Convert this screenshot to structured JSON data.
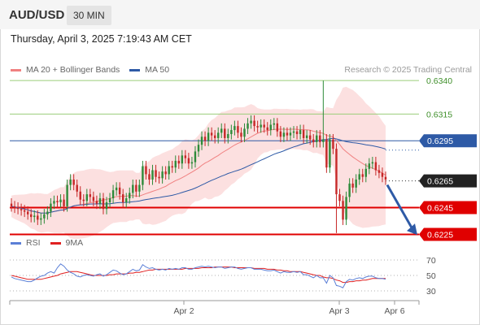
{
  "header": {
    "symbol": "AUD/USD",
    "interval": "30 MIN"
  },
  "timestamp": "Thursday, April 3, 2025 7:19:43 AM CET",
  "legend_main": [
    {
      "label": "MA 20 + Bollinger Bands",
      "color": "#f08080"
    },
    {
      "label": "MA 50",
      "color": "#2e5aa6"
    }
  ],
  "credit": "Research © 2025 Trading Central",
  "legend_rsi": [
    {
      "label": "RSI",
      "color": "#5b7fd6"
    },
    {
      "label": "9MA",
      "color": "#e02020"
    }
  ],
  "colors": {
    "up": "#2e8b3a",
    "down": "#c62828",
    "band": "#fbdada",
    "ma20": "#f08080",
    "ma50": "#2e5aa6",
    "resistance_green": "#9acd7a",
    "pivot_blue": "#2e5aa6",
    "support_red": "#e00000",
    "arrow": "#2e5aa6"
  },
  "chart_data": [
    {
      "type": "candlestick",
      "symbol": "AUD/USD",
      "timeframe": "30 MIN",
      "y_labels": [
        "0.6340",
        "0.6315",
        "0.6295",
        "0.6265",
        "0.6245",
        "0.6225"
      ],
      "ylim": [
        0.6218,
        0.6348
      ],
      "x_ticks": [
        "Apr 2",
        "Apr 3",
        "Apr 6"
      ],
      "levels": [
        {
          "value": 0.634,
          "label": "0.6340",
          "kind": "resistance"
        },
        {
          "value": 0.6315,
          "label": "0.6315",
          "kind": "resistance"
        },
        {
          "value": 0.6295,
          "label": "0.6295",
          "kind": "pivot"
        },
        {
          "value": 0.6265,
          "label": "0.6265",
          "kind": "last-price"
        },
        {
          "value": 0.6245,
          "label": "0.6245",
          "kind": "support"
        },
        {
          "value": 0.6225,
          "label": "0.6225",
          "kind": "support"
        }
      ],
      "forecast_arrow": {
        "from": 0.6262,
        "to": 0.6227,
        "direction": "down"
      },
      "close": [
        0.6246,
        0.6245,
        0.6244,
        0.6243,
        0.6242,
        0.624,
        0.6238,
        0.6239,
        0.6236,
        0.6237,
        0.624,
        0.6242,
        0.6248,
        0.625,
        0.6249,
        0.6251,
        0.6246,
        0.6262,
        0.6266,
        0.6262,
        0.6257,
        0.6251,
        0.625,
        0.6255,
        0.6253,
        0.625,
        0.6248,
        0.6252,
        0.6244,
        0.6249,
        0.6252,
        0.6258,
        0.626,
        0.6255,
        0.6249,
        0.6252,
        0.6256,
        0.6262,
        0.6257,
        0.6262,
        0.6276,
        0.627,
        0.6266,
        0.6273,
        0.6268,
        0.6267,
        0.6272,
        0.627,
        0.6276,
        0.6275,
        0.628,
        0.6278,
        0.6284,
        0.6282,
        0.6278,
        0.6279,
        0.6287,
        0.6292,
        0.6298,
        0.6295,
        0.6301,
        0.6299,
        0.6297,
        0.6301,
        0.6304,
        0.6297,
        0.63,
        0.6303,
        0.6306,
        0.6301,
        0.6298,
        0.6304,
        0.6308,
        0.631,
        0.6306,
        0.6305,
        0.6307,
        0.6305,
        0.6303,
        0.6307,
        0.6308,
        0.6302,
        0.6298,
        0.6301,
        0.6299,
        0.6301,
        0.6302,
        0.63,
        0.6303,
        0.6297,
        0.6299,
        0.6296,
        0.6294,
        0.6299,
        0.6294,
        0.6296,
        0.6275,
        0.6296,
        0.6289,
        0.6255,
        0.625,
        0.6236,
        0.6253,
        0.6263,
        0.626,
        0.6266,
        0.627,
        0.6268,
        0.6274,
        0.6278,
        0.6279,
        0.6273,
        0.6271,
        0.6268,
        0.6266
      ],
      "rsi": [
        48,
        46,
        45,
        44,
        43,
        42,
        42,
        44,
        47,
        49,
        50,
        53,
        55,
        53,
        60,
        65,
        62,
        57,
        54,
        52,
        49,
        48,
        50,
        51,
        50,
        49,
        51,
        52,
        49,
        51,
        54,
        57,
        56,
        53,
        51,
        52,
        55,
        58,
        56,
        57,
        64,
        61,
        59,
        60,
        58,
        57,
        58,
        57,
        59,
        58,
        59,
        58,
        60,
        60,
        58,
        58,
        60,
        61,
        62,
        61,
        62,
        61,
        60,
        61,
        61,
        59,
        60,
        61,
        61,
        59,
        58,
        59,
        60,
        60,
        58,
        58,
        58,
        57,
        56,
        56,
        57,
        55,
        53,
        55,
        54,
        54,
        55,
        54,
        55,
        51,
        51,
        49,
        47,
        50,
        47,
        47,
        40,
        50,
        47,
        37,
        36,
        34,
        42,
        45,
        44,
        46,
        47,
        46,
        48,
        49,
        49,
        47,
        46,
        46,
        45
      ],
      "rsi_ma": [
        50,
        49,
        48,
        47,
        46,
        45,
        45,
        45,
        45,
        45,
        46,
        47,
        48,
        49,
        50,
        52,
        53,
        54,
        55,
        55,
        55,
        54,
        53,
        52,
        51,
        50,
        50,
        50,
        50,
        50,
        51,
        51,
        52,
        52,
        52,
        52,
        53,
        53,
        54,
        54,
        55,
        56,
        57,
        57,
        58,
        58,
        58,
        58,
        58,
        58,
        58,
        58,
        58,
        59,
        59,
        59,
        59,
        59,
        60,
        60,
        60,
        60,
        61,
        61,
        61,
        61,
        61,
        61,
        60,
        60,
        60,
        60,
        60,
        60,
        59,
        59,
        59,
        59,
        58,
        58,
        58,
        57,
        57,
        56,
        56,
        55,
        55,
        55,
        55,
        54,
        53,
        52,
        51,
        50,
        50,
        48,
        47,
        47,
        46,
        44,
        43,
        41,
        41,
        42,
        42,
        43,
        43,
        44,
        44,
        45,
        46,
        46,
        46,
        46,
        46
      ],
      "rsi_levels": [
        70,
        50,
        30
      ]
    }
  ]
}
